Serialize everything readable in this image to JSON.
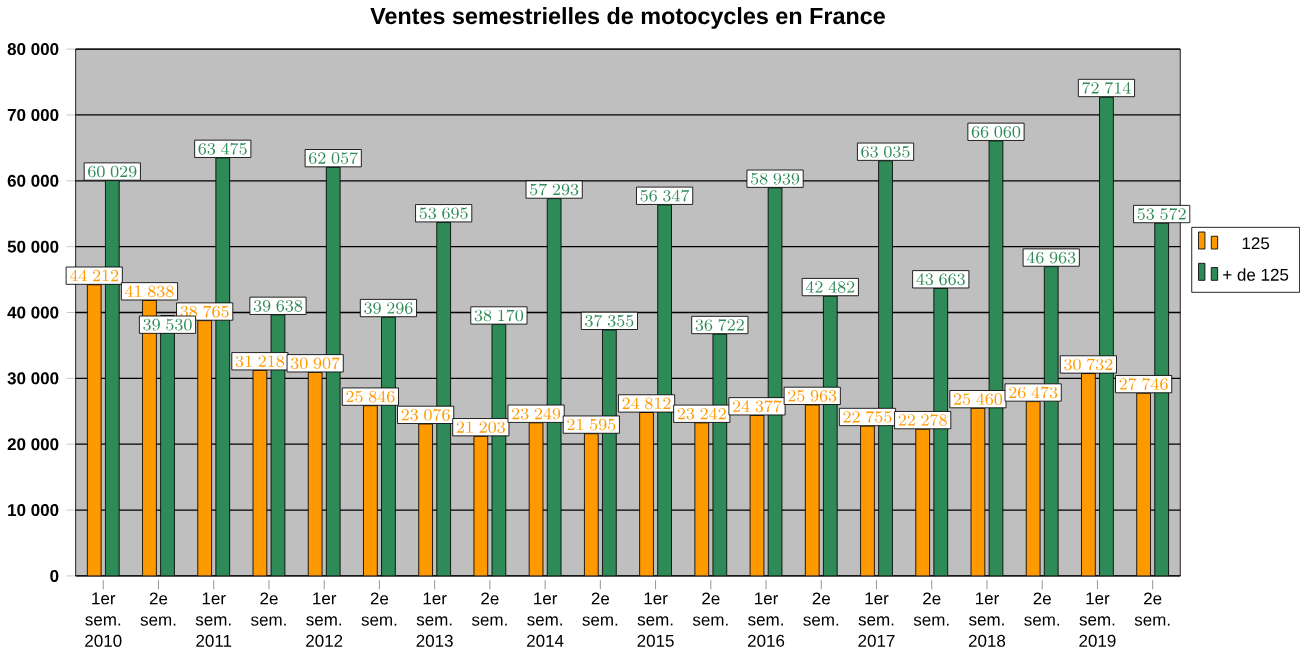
{
  "chart_data": {
    "type": "bar",
    "title": "Ventes semestrielles de motocycles en France",
    "categories": [
      "1er sem. 2010",
      "2e sem.",
      "1er sem. 2011",
      "2e sem.",
      "1er sem. 2012",
      "2e sem.",
      "1er sem. 2013",
      "2e sem.",
      "1er sem. 2014",
      "2e sem.",
      "1er sem. 2015",
      "2e sem.",
      "1er sem. 2016",
      "2e sem.",
      "1er sem. 2017",
      "2e sem.",
      "1er sem. 2018",
      "2e sem.",
      "1er sem. 2019",
      "2e sem."
    ],
    "series": [
      {
        "name": "125",
        "color": "#ff9900",
        "values": [
          44212,
          41838,
          38765,
          31218,
          30907,
          25846,
          23076,
          21203,
          23249,
          21595,
          24812,
          23242,
          24377,
          25963,
          22755,
          22278,
          25460,
          26473,
          30732,
          27746
        ]
      },
      {
        "name": "+ de 125",
        "color": "#2e8b57",
        "values": [
          60029,
          39530,
          63475,
          39638,
          62057,
          39296,
          53695,
          38170,
          57293,
          37355,
          56347,
          36722,
          58939,
          42482,
          63035,
          43663,
          66060,
          46963,
          72714,
          53572
        ]
      }
    ],
    "ylim": [
      0,
      80000
    ],
    "yticks": [
      0,
      {
        "value": 10000,
        "label": "10 000"
      },
      {
        "value": 20000,
        "label": "20 000"
      },
      {
        "value": 30000,
        "label": "30 000"
      },
      {
        "value": 40000,
        "label": "40 000"
      },
      {
        "value": 50000,
        "label": "50 000"
      },
      {
        "value": 60000,
        "label": "60 000"
      },
      {
        "value": 70000,
        "label": "70 000"
      },
      {
        "value": 80000,
        "label": "80 000"
      }
    ],
    "grid": "y",
    "legend": "right",
    "data_labels": true
  }
}
